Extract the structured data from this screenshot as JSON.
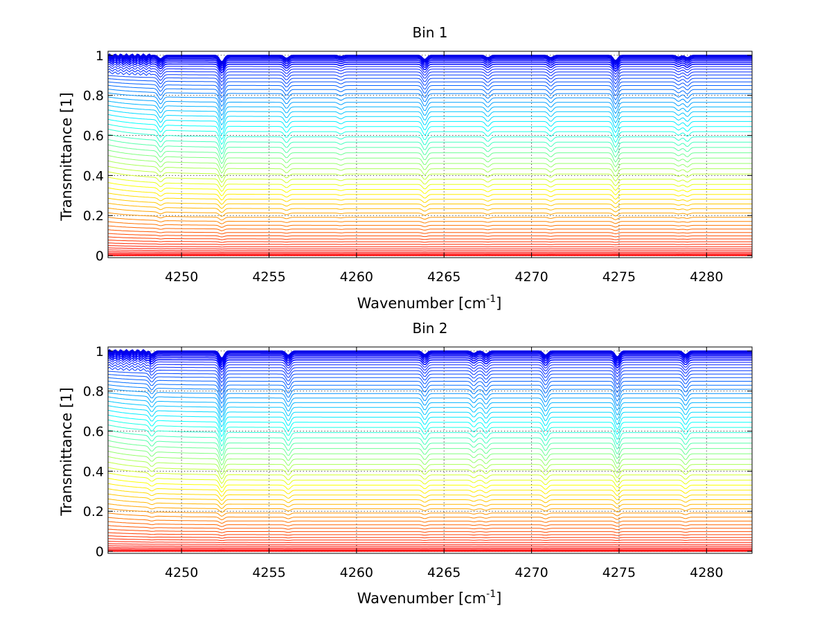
{
  "chart_data": [
    {
      "type": "line",
      "title": "Bin 1",
      "xlabel": "Wavenumber [cm",
      "xlabel_sup": "-1",
      "xlabel_end": "]",
      "ylabel": "Transmittance [1]",
      "xlim": [
        4245.8,
        4282.6
      ],
      "ylim": [
        -0.01,
        1.02
      ],
      "xticks": [
        4250,
        4255,
        4260,
        4265,
        4270,
        4275,
        4280
      ],
      "xtick_labels": [
        "4250",
        "4255",
        "4260",
        "4265",
        "4270",
        "4275",
        "4280"
      ],
      "yticks": [
        0,
        0.2,
        0.4,
        0.6,
        0.8,
        1
      ],
      "ytick_labels": [
        "0",
        "0.2",
        "0.4",
        "0.6",
        "0.8",
        "1"
      ],
      "grid": true,
      "series_count": 60,
      "series_levels_range": [
        0.0,
        1.0
      ],
      "colormap": "jet",
      "absorption_lines": [
        {
          "center": 4248.8,
          "depth": 0.06
        },
        {
          "center": 4252.3,
          "depth": 0.11
        },
        {
          "center": 4256.0,
          "depth": 0.05
        },
        {
          "center": 4259.1,
          "depth": 0.02
        },
        {
          "center": 4263.9,
          "depth": 0.07
        },
        {
          "center": 4267.5,
          "depth": 0.04
        },
        {
          "center": 4271.1,
          "depth": 0.04
        },
        {
          "center": 4274.8,
          "depth": 0.09
        },
        {
          "center": 4278.4,
          "depth": 0.03
        },
        {
          "center": 4278.9,
          "depth": 0.04
        }
      ]
    },
    {
      "type": "line",
      "title": "Bin 2",
      "xlabel": "Wavenumber [cm",
      "xlabel_sup": "-1",
      "xlabel_end": "]",
      "ylabel": "Transmittance [1]",
      "xlim": [
        4245.8,
        4282.6
      ],
      "ylim": [
        -0.01,
        1.02
      ],
      "xticks": [
        4250,
        4255,
        4260,
        4265,
        4270,
        4275,
        4280
      ],
      "xtick_labels": [
        "4250",
        "4255",
        "4260",
        "4265",
        "4270",
        "4275",
        "4280"
      ],
      "yticks": [
        0,
        0.2,
        0.4,
        0.6,
        0.8,
        1
      ],
      "ytick_labels": [
        "0",
        "0.2",
        "0.4",
        "0.6",
        "0.8",
        "1"
      ],
      "grid": true,
      "series_count": 60,
      "series_levels_range": [
        0.0,
        1.0
      ],
      "colormap": "jet",
      "absorption_lines": [
        {
          "center": 4248.3,
          "depth": 0.05
        },
        {
          "center": 4252.3,
          "depth": 0.12
        },
        {
          "center": 4256.1,
          "depth": 0.07
        },
        {
          "center": 4263.9,
          "depth": 0.06
        },
        {
          "center": 4266.7,
          "depth": 0.04
        },
        {
          "center": 4267.4,
          "depth": 0.05
        },
        {
          "center": 4270.8,
          "depth": 0.07
        },
        {
          "center": 4274.9,
          "depth": 0.1
        },
        {
          "center": 4278.8,
          "depth": 0.06
        }
      ]
    }
  ]
}
